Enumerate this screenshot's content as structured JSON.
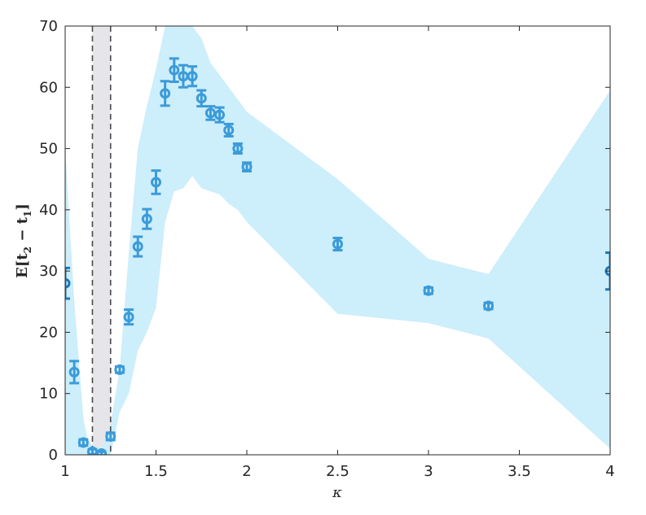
{
  "chart_data": {
    "type": "scatter",
    "title": "",
    "xlabel": "κ",
    "ylabel_parts": {
      "left": "E[t",
      "sub1": "2",
      "mid": " − t",
      "sub2": "1",
      "right": "]"
    },
    "xlim": [
      1,
      4
    ],
    "ylim": [
      0,
      70
    ],
    "xticks": [
      1,
      1.5,
      2,
      2.5,
      3,
      3.5,
      4
    ],
    "xtick_labels": [
      "1",
      "1.5",
      "2",
      "2.5",
      "3",
      "3.5",
      "4"
    ],
    "yticks": [
      0,
      10,
      20,
      30,
      40,
      50,
      60,
      70
    ],
    "ytick_labels": [
      "0",
      "10",
      "20",
      "30",
      "40",
      "50",
      "60",
      "70"
    ],
    "grid": false,
    "colors": {
      "band": "#cdeefb",
      "marker": "#3b9bd8",
      "marker_dark": "#1f78b9",
      "vline": "#4a4a4a",
      "shade": "#e6e6ea"
    },
    "vertical_lines": [
      1.15,
      1.25
    ],
    "shaded_interval": [
      1.15,
      1.25
    ],
    "band": {
      "x": [
        1.0,
        1.05,
        1.1,
        1.12,
        1.15,
        1.2,
        1.25,
        1.3,
        1.35,
        1.4,
        1.45,
        1.5,
        1.55,
        1.6,
        1.65,
        1.7,
        1.75,
        1.8,
        1.85,
        1.9,
        1.95,
        2.0,
        2.5,
        3.0,
        3.33,
        4.0
      ],
      "upper": [
        50,
        25,
        6,
        3,
        1.5,
        1,
        5,
        14,
        33,
        50,
        57,
        63,
        70,
        70,
        70,
        70,
        68,
        64,
        62,
        60,
        58,
        56,
        45,
        32,
        29.5,
        59.5
      ],
      "lower": [
        0,
        0,
        0,
        0,
        0,
        0,
        0,
        7,
        10,
        17,
        20,
        24,
        38,
        43,
        43.5,
        45.5,
        43.5,
        43,
        42.5,
        41,
        40,
        38,
        23,
        21.5,
        19,
        1
      ]
    },
    "series": [
      {
        "x": [
          1.0,
          1.05,
          1.1,
          1.15,
          1.2,
          1.25,
          1.3,
          1.35,
          1.4,
          1.45,
          1.5,
          1.55,
          1.6,
          1.65,
          1.7,
          1.75,
          1.8,
          1.85,
          1.9,
          1.95,
          2.0,
          2.5,
          3.0,
          3.33,
          4.0
        ],
        "y": [
          28,
          13.5,
          2,
          0.5,
          0.2,
          3,
          13.9,
          22.5,
          34,
          38.5,
          44.5,
          59,
          62.8,
          61.8,
          61.8,
          58.2,
          55.8,
          55.5,
          53,
          50,
          47,
          34.4,
          26.8,
          24.3,
          30
        ],
        "err": [
          2.5,
          1.8,
          0.5,
          0.4,
          0.3,
          0.6,
          0.5,
          1.2,
          1.6,
          1.6,
          1.9,
          2.0,
          1.9,
          1.8,
          1.6,
          1.3,
          1.1,
          1.2,
          1.0,
          0.8,
          0.7,
          1.0,
          0.5,
          0.5,
          3.0
        ]
      }
    ]
  }
}
